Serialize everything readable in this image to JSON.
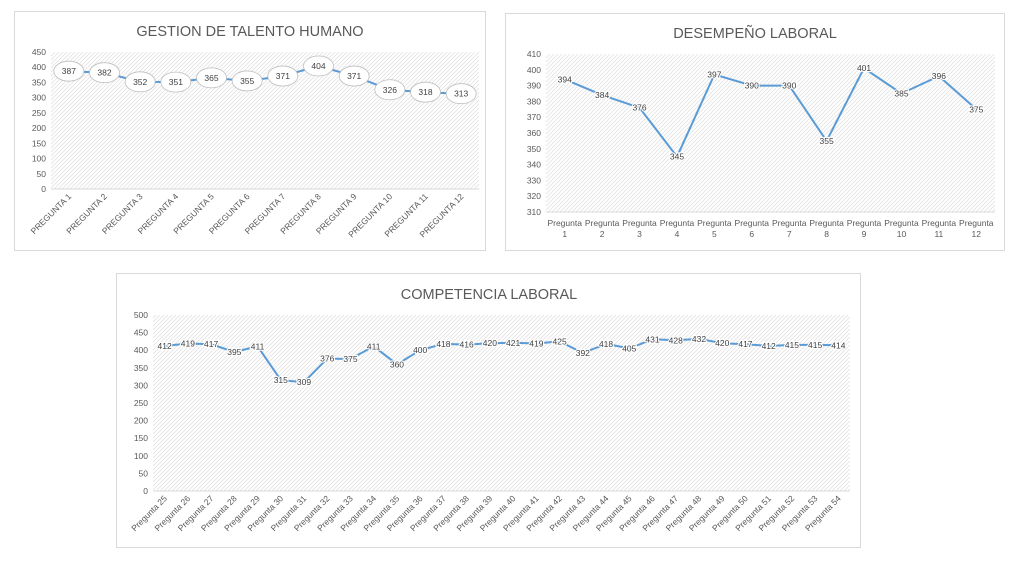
{
  "chart_data": [
    {
      "type": "line",
      "title": "GESTION DE TALENTO HUMANO",
      "categories": [
        "PREGUNTA 1",
        "PREGUNTA 2",
        "PREGUNTA 3",
        "PREGUNTA 4",
        "PREGUNTA 5",
        "PREGUNTA 6",
        "PREGUNTA 7",
        "PREGUNTA 8",
        "PREGUNTA 9",
        "PREGUNTA 10",
        "PREGUNTA 11",
        "PREGUNTA 12"
      ],
      "values": [
        387,
        382,
        352,
        351,
        365,
        355,
        371,
        404,
        371,
        326,
        318,
        313
      ],
      "ylim": [
        0,
        450
      ],
      "yticks": [
        0,
        50,
        100,
        150,
        200,
        250,
        300,
        350,
        400,
        450
      ],
      "xlabel": "",
      "ylabel": "",
      "label_style": "bubble",
      "xtick_style": "rotated",
      "line_color": "#5b9bd5",
      "grid": true,
      "legend": "none"
    },
    {
      "type": "line",
      "title": "DESEMPEÑO LABORAL",
      "categories": [
        [
          "Pregunta",
          "1"
        ],
        [
          "Pregunta",
          "2"
        ],
        [
          "Pregunta",
          "3"
        ],
        [
          "Pregunta",
          "4"
        ],
        [
          "Pregunta",
          "5"
        ],
        [
          "Pregunta",
          "6"
        ],
        [
          "Pregunta",
          "7"
        ],
        [
          "Pregunta",
          "8"
        ],
        [
          "Pregunta",
          "9"
        ],
        [
          "Pregunta",
          "10"
        ],
        [
          "Pregunta",
          "11"
        ],
        [
          "Pregunta",
          "12"
        ]
      ],
      "values": [
        394,
        384,
        376,
        345,
        397,
        390,
        390,
        355,
        401,
        385,
        396,
        375
      ],
      "ylim": [
        310,
        410
      ],
      "yticks": [
        310,
        320,
        330,
        340,
        350,
        360,
        370,
        380,
        390,
        400,
        410
      ],
      "xlabel": "",
      "ylabel": "",
      "label_style": "plain",
      "xtick_style": "wrapped",
      "line_color": "#5b9bd5",
      "grid": true,
      "legend": "none"
    },
    {
      "type": "line",
      "title": "COMPETENCIA LABORAL",
      "categories": [
        "Pregunta 25",
        "Pregunta 26",
        "Pregunta 27",
        "Pregunta 28",
        "Pregunta 29",
        "Pregunta 30",
        "Pregunta 31",
        "Pregunta 32",
        "Pregunta 33",
        "Pregunta 34",
        "Pregunta 35",
        "Pregunta 36",
        "Pregunta 37",
        "Pregunta 38",
        "Pregunta 39",
        "Pregunta 40",
        "Pregunta 41",
        "Pregunta 42",
        "Pregunta 43",
        "Pregunta 44",
        "Pregunta 45",
        "Pregunta 46",
        "Pregunta 47",
        "Pregunta 48",
        "Pregunta 49",
        "Pregunta 50",
        "Pregunta 51",
        "Pregunta 52",
        "Pregunta 53",
        "Pregunta 54"
      ],
      "values": [
        412,
        419,
        417,
        395,
        411,
        315,
        309,
        376,
        375,
        411,
        360,
        400,
        418,
        416,
        420,
        421,
        419,
        425,
        392,
        418,
        405,
        431,
        428,
        432,
        420,
        417,
        412,
        415,
        415,
        414
      ],
      "ylim": [
        0,
        500
      ],
      "yticks": [
        0,
        50,
        100,
        150,
        200,
        250,
        300,
        350,
        400,
        450,
        500
      ],
      "xlabel": "",
      "ylabel": "",
      "label_style": "plain",
      "xtick_style": "rotated",
      "line_color": "#5b9bd5",
      "grid": true,
      "legend": "none"
    }
  ]
}
